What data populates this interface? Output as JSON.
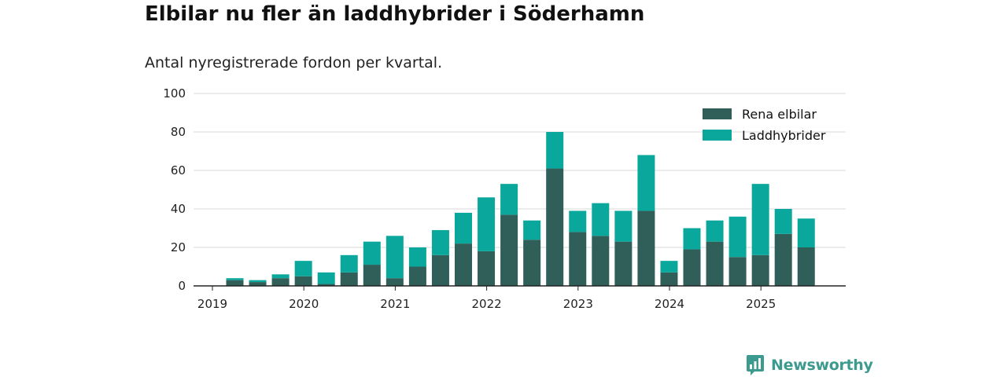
{
  "header": {
    "title": "Elbilar nu fler än laddhybrider i Söderhamn",
    "subtitle": "Antal nyregistrerade fordon per kvartal."
  },
  "colors": {
    "elbilar": "#2f5f58",
    "laddhybrider": "#0aa89c",
    "grid": "#d9d9d9",
    "axis": "#222222",
    "brand": "#3c9a8e"
  },
  "chart_data": {
    "type": "bar",
    "stacked": true,
    "title": "Elbilar nu fler än laddhybrider i Söderhamn",
    "subtitle": "Antal nyregistrerade fordon per kvartal.",
    "xlabel": "",
    "ylabel": "",
    "ylim": [
      0,
      100
    ],
    "yticks": [
      0,
      20,
      40,
      60,
      80,
      100
    ],
    "grid": true,
    "legend_position": "top-right",
    "xtick_labels": [
      "2019",
      "2020",
      "2021",
      "2022",
      "2023",
      "2024",
      "2025"
    ],
    "categories": [
      "2019 Q2",
      "2019 Q3",
      "2019 Q4",
      "2020 Q1",
      "2020 Q2",
      "2020 Q3",
      "2020 Q4",
      "2021 Q1",
      "2021 Q2",
      "2021 Q3",
      "2021 Q4",
      "2022 Q1",
      "2022 Q2",
      "2022 Q3",
      "2022 Q4",
      "2023 Q1",
      "2023 Q2",
      "2023 Q3",
      "2023 Q4",
      "2024 Q1",
      "2024 Q2",
      "2024 Q3",
      "2024 Q4",
      "2025 Q1",
      "2025 Q2",
      "2025 Q3"
    ],
    "series": [
      {
        "name": "Rena elbilar",
        "values": [
          3,
          2,
          4,
          5,
          1,
          7,
          11,
          4,
          10,
          16,
          22,
          18,
          37,
          24,
          61,
          28,
          26,
          23,
          39,
          7,
          19,
          23,
          15,
          16,
          27,
          20
        ]
      },
      {
        "name": "Laddhybrider",
        "values": [
          1,
          1,
          2,
          8,
          6,
          9,
          12,
          22,
          10,
          13,
          16,
          28,
          16,
          10,
          19,
          11,
          17,
          16,
          29,
          6,
          11,
          11,
          21,
          37,
          13,
          15
        ]
      }
    ]
  },
  "brand": {
    "name": "Newsworthy",
    "logo_icon": "bar-chart-speech-bubble-icon"
  }
}
